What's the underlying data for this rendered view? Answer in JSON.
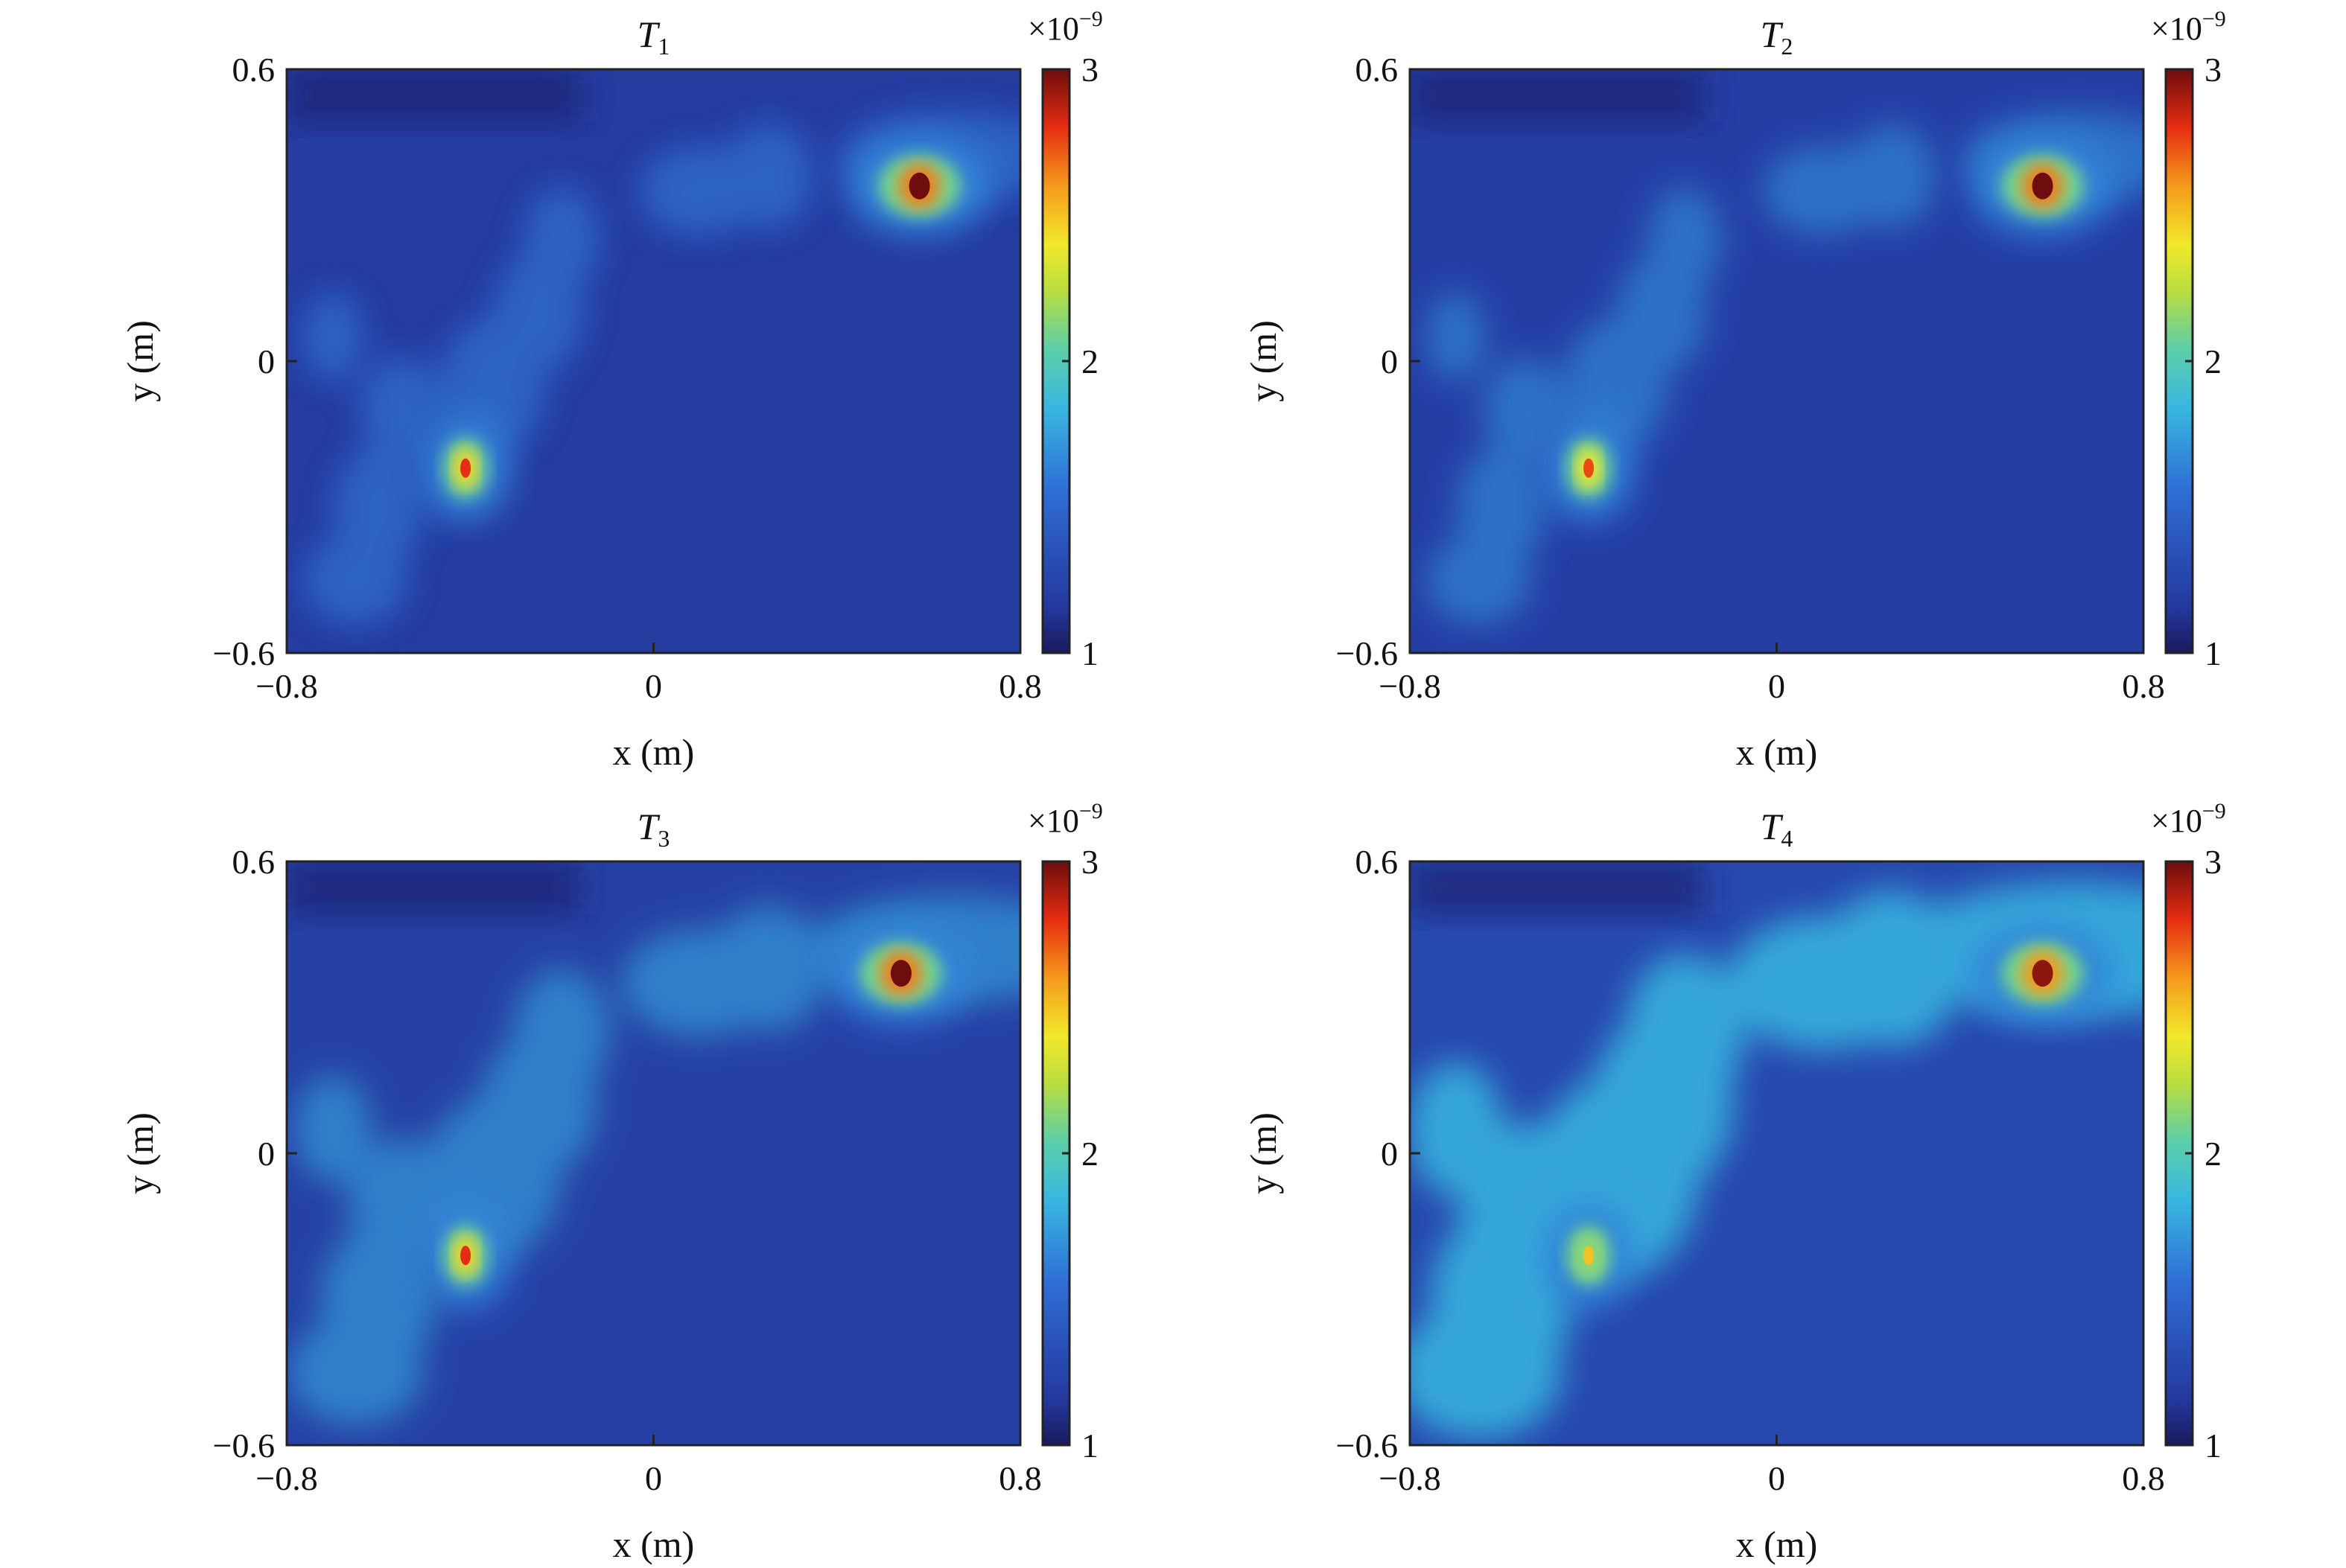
{
  "chart_data": [
    {
      "type": "heatmap",
      "title": "T",
      "title_subscript": "1",
      "xlabel": "x (m)",
      "ylabel": "y (m)",
      "xlim": [
        -0.8,
        0.8
      ],
      "ylim": [
        -0.6,
        0.6
      ],
      "xticks": [
        -0.8,
        0,
        0.8
      ],
      "xtick_labels": [
        "−0.8",
        "0",
        "0.8"
      ],
      "yticks": [
        -0.6,
        0,
        0.6
      ],
      "ytick_labels": [
        "−0.6",
        "0",
        "0.6"
      ],
      "colorbar": {
        "range": [
          1,
          3
        ],
        "ticks": [
          1,
          2,
          3
        ],
        "tick_labels": [
          "1",
          "2",
          "3"
        ],
        "multiplier": "×10",
        "exponent": "−9",
        "colormap": "jet"
      },
      "background_value": 1.18,
      "hotspots": [
        {
          "x": 0.58,
          "y": 0.36,
          "value": 3.0
        },
        {
          "x": -0.41,
          "y": -0.22,
          "value": 2.8
        }
      ]
    },
    {
      "type": "heatmap",
      "title": "T",
      "title_subscript": "2",
      "xlabel": "x (m)",
      "ylabel": "y (m)",
      "xlim": [
        -0.8,
        0.8
      ],
      "ylim": [
        -0.6,
        0.6
      ],
      "xticks": [
        -0.8,
        0,
        0.8
      ],
      "xtick_labels": [
        "−0.8",
        "0",
        "0.8"
      ],
      "yticks": [
        -0.6,
        0,
        0.6
      ],
      "ytick_labels": [
        "−0.6",
        "0",
        "0.6"
      ],
      "colorbar": {
        "range": [
          1,
          3
        ],
        "ticks": [
          1,
          2,
          3
        ],
        "tick_labels": [
          "1",
          "2",
          "3"
        ],
        "multiplier": "×10",
        "exponent": "−9",
        "colormap": "jet"
      },
      "background_value": 1.2,
      "hotspots": [
        {
          "x": 0.58,
          "y": 0.36,
          "value": 3.0
        },
        {
          "x": -0.41,
          "y": -0.22,
          "value": 2.75
        }
      ]
    },
    {
      "type": "heatmap",
      "title": "T",
      "title_subscript": "3",
      "xlabel": "x (m)",
      "ylabel": "y (m)",
      "xlim": [
        -0.8,
        0.8
      ],
      "ylim": [
        -0.6,
        0.6
      ],
      "xticks": [
        -0.8,
        0,
        0.8
      ],
      "xtick_labels": [
        "−0.8",
        "0",
        "0.8"
      ],
      "yticks": [
        -0.6,
        0,
        0.6
      ],
      "ytick_labels": [
        "−0.6",
        "0",
        "0.6"
      ],
      "colorbar": {
        "range": [
          1,
          3
        ],
        "ticks": [
          1,
          2,
          3
        ],
        "tick_labels": [
          "1",
          "2",
          "3"
        ],
        "multiplier": "×10",
        "exponent": "−9",
        "colormap": "jet"
      },
      "background_value": 1.22,
      "hotspots": [
        {
          "x": 0.54,
          "y": 0.37,
          "value": 3.0
        },
        {
          "x": -0.41,
          "y": -0.21,
          "value": 2.8
        }
      ]
    },
    {
      "type": "heatmap",
      "title": "T",
      "title_subscript": "4",
      "xlabel": "x (m)",
      "ylabel": "y (m)",
      "xlim": [
        -0.8,
        0.8
      ],
      "ylim": [
        -0.6,
        0.6
      ],
      "xticks": [
        -0.8,
        0,
        0.8
      ],
      "xtick_labels": [
        "−0.8",
        "0",
        "0.8"
      ],
      "yticks": [
        -0.6,
        0,
        0.6
      ],
      "ytick_labels": [
        "−0.6",
        "0",
        "0.6"
      ],
      "colorbar": {
        "range": [
          1,
          3
        ],
        "ticks": [
          1,
          2,
          3
        ],
        "tick_labels": [
          "1",
          "2",
          "3"
        ],
        "multiplier": "×10",
        "exponent": "−9",
        "colormap": "jet"
      },
      "background_value": 1.28,
      "hotspots": [
        {
          "x": 0.58,
          "y": 0.37,
          "value": 2.95
        },
        {
          "x": -0.41,
          "y": -0.21,
          "value": 2.5
        }
      ]
    }
  ]
}
